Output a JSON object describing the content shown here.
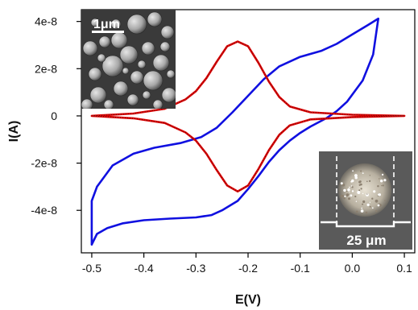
{
  "chart_data": {
    "type": "line",
    "xlabel": "E(V)",
    "ylabel": "I(A)",
    "xlim": [
      -0.52,
      0.12
    ],
    "ylim": [
      -5.8e-08,
      4.5e-08
    ],
    "x_ticks": [
      -0.5,
      -0.4,
      -0.3,
      -0.2,
      -0.1,
      0.0,
      0.1
    ],
    "x_tick_labels": [
      "-0.5",
      "-0.4",
      "-0.3",
      "-0.2",
      "-0.1",
      "0.0",
      "0.1"
    ],
    "y_ticks": [
      4e-08,
      2e-08,
      0,
      -2e-08,
      -4e-08
    ],
    "y_tick_labels": [
      "4e-8",
      "2e-8",
      "0",
      "-2e-8",
      "-4e-8"
    ],
    "grid": false,
    "series": [
      {
        "color": "#1010e0",
        "points": [
          [
            -0.5,
            -5.45e-08
          ],
          [
            -0.49,
            -5e-08
          ],
          [
            -0.47,
            -4.75e-08
          ],
          [
            -0.44,
            -4.55e-08
          ],
          [
            -0.4,
            -4.42e-08
          ],
          [
            -0.35,
            -4.35e-08
          ],
          [
            -0.3,
            -4.3e-08
          ],
          [
            -0.27,
            -4.2e-08
          ],
          [
            -0.25,
            -4e-08
          ],
          [
            -0.22,
            -3.6e-08
          ],
          [
            -0.2,
            -3.1e-08
          ],
          [
            -0.18,
            -2.55e-08
          ],
          [
            -0.16,
            -1.95e-08
          ],
          [
            -0.14,
            -1.45e-08
          ],
          [
            -0.12,
            -1.05e-08
          ],
          [
            -0.1,
            -7.2e-09
          ],
          [
            -0.08,
            -4.5e-09
          ],
          [
            -0.05,
            -1e-09
          ],
          [
            -0.03,
            2e-09
          ],
          [
            -0.01,
            6e-09
          ],
          [
            0.02,
            1.5e-08
          ],
          [
            0.04,
            2.6e-08
          ],
          [
            0.05,
            4.12e-08
          ],
          [
            0.03,
            3.85e-08
          ],
          [
            0.0,
            3.45e-08
          ],
          [
            -0.03,
            3.05e-08
          ],
          [
            -0.06,
            2.75e-08
          ],
          [
            -0.1,
            2.5e-08
          ],
          [
            -0.14,
            2.1e-08
          ],
          [
            -0.17,
            1.55e-08
          ],
          [
            -0.2,
            8.5e-09
          ],
          [
            -0.23,
            1.5e-09
          ],
          [
            -0.26,
            -5e-09
          ],
          [
            -0.29,
            -9e-09
          ],
          [
            -0.33,
            -1.15e-08
          ],
          [
            -0.38,
            -1.35e-08
          ],
          [
            -0.42,
            -1.6e-08
          ],
          [
            -0.46,
            -2.1e-08
          ],
          [
            -0.49,
            -3e-08
          ],
          [
            -0.5,
            -3.6e-08
          ],
          [
            -0.5,
            -5.45e-08
          ]
        ]
      },
      {
        "color": "#e00000",
        "points": [
          [
            -0.5,
            0.0
          ],
          [
            -0.42,
            1e-09
          ],
          [
            -0.36,
            3e-09
          ],
          [
            -0.32,
            7e-09
          ],
          [
            -0.3,
            1.05e-08
          ],
          [
            -0.28,
            1.6e-08
          ],
          [
            -0.26,
            2.3e-08
          ],
          [
            -0.24,
            2.95e-08
          ],
          [
            -0.22,
            3.15e-08
          ],
          [
            -0.2,
            2.95e-08
          ],
          [
            -0.18,
            2.25e-08
          ],
          [
            -0.16,
            1.45e-08
          ],
          [
            -0.14,
            8e-09
          ],
          [
            -0.12,
            4e-09
          ],
          [
            -0.08,
            1.5e-09
          ],
          [
            0.0,
            5e-10
          ],
          [
            0.1,
            0.0
          ],
          [
            0.0,
            -5e-10
          ],
          [
            -0.08,
            -1.5e-09
          ],
          [
            -0.12,
            -4e-09
          ],
          [
            -0.14,
            -8e-09
          ],
          [
            -0.16,
            -1.45e-08
          ],
          [
            -0.18,
            -2.25e-08
          ],
          [
            -0.2,
            -2.95e-08
          ],
          [
            -0.22,
            -3.2e-08
          ],
          [
            -0.24,
            -2.95e-08
          ],
          [
            -0.26,
            -2.3e-08
          ],
          [
            -0.28,
            -1.6e-08
          ],
          [
            -0.3,
            -1.05e-08
          ],
          [
            -0.32,
            -7e-09
          ],
          [
            -0.36,
            -3e-09
          ],
          [
            -0.42,
            -1e-09
          ],
          [
            -0.5,
            0.0
          ]
        ]
      }
    ],
    "insets": [
      {
        "label": "1μm",
        "position": "top-left"
      },
      {
        "label": "25 μm",
        "position": "bottom-right"
      }
    ]
  }
}
